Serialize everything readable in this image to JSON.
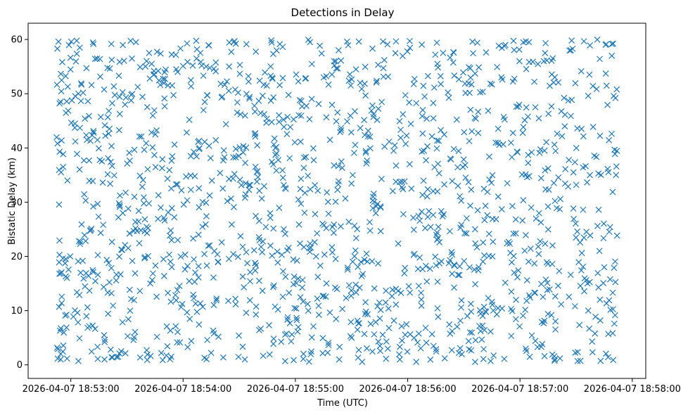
{
  "chart_data": {
    "type": "scatter",
    "title": "Detections in Delay",
    "xlabel": "Time (UTC)",
    "ylabel": "Bistatic Delay (km)",
    "marker": "x",
    "color": "#1f77b4",
    "x_unit": "minutes since 2026-04-07 18:52:00",
    "xlim": [
      0.62,
      6.12
    ],
    "ylim": [
      -2.5,
      63
    ],
    "x_ticks": [
      {
        "value": 1,
        "label": "2026-04-07 18:53:00"
      },
      {
        "value": 2,
        "label": "2026-04-07 18:54:00"
      },
      {
        "value": 3,
        "label": "2026-04-07 18:55:00"
      },
      {
        "value": 4,
        "label": "2026-04-07 18:56:00"
      },
      {
        "value": 5,
        "label": "2026-04-07 18:57:00"
      },
      {
        "value": 6,
        "label": "2026-04-07 18:58:00"
      }
    ],
    "y_ticks": [
      {
        "value": 0,
        "label": "0"
      },
      {
        "value": 10,
        "label": "10"
      },
      {
        "value": 20,
        "label": "20"
      },
      {
        "value": 30,
        "label": "30"
      },
      {
        "value": 40,
        "label": "40"
      },
      {
        "value": 50,
        "label": "50"
      },
      {
        "value": 60,
        "label": "60"
      }
    ],
    "grid": false,
    "series": [
      {
        "name": "Detections",
        "x_range": [
          0.87,
          5.87
        ],
        "y_range": [
          0.5,
          60
        ],
        "count": 1500,
        "seed": 20260407,
        "points": [
          [
            0.88,
            58.3
          ],
          [
            0.89,
            59.6
          ],
          [
            0.9,
            48.2
          ],
          [
            0.91,
            1.0
          ],
          [
            0.9,
            39.3
          ],
          [
            0.95,
            9.1
          ],
          [
            0.97,
            34.0
          ],
          [
            1.08,
            58.5
          ],
          [
            1.26,
            56.4
          ],
          [
            1.3,
            1.0
          ],
          [
            1.58,
            59.5
          ],
          [
            1.72,
            55.5
          ],
          [
            2.23,
            58.9
          ],
          [
            2.45,
            59.5
          ],
          [
            2.78,
            53.3
          ],
          [
            3.13,
            59.5
          ],
          [
            3.46,
            59.6
          ],
          [
            3.82,
            59.1
          ],
          [
            4.26,
            59.4
          ],
          [
            4.62,
            59.4
          ],
          [
            4.87,
            59.0
          ],
          [
            5.08,
            59.5
          ],
          [
            5.46,
            59.8
          ],
          [
            5.71,
            56.4
          ],
          [
            5.85,
            49.2
          ],
          [
            5.84,
            7.6
          ],
          [
            5.83,
            0.9
          ],
          [
            5.31,
            1.0
          ],
          [
            4.86,
            1.1
          ],
          [
            4.33,
            1.2
          ],
          [
            3.93,
            1.0
          ],
          [
            3.39,
            1.0
          ],
          [
            3.07,
            1.1
          ],
          [
            2.55,
            1.0
          ],
          [
            2.19,
            1.3
          ],
          [
            1.68,
            0.9
          ],
          [
            1.24,
            1.1
          ],
          [
            2.94,
            21.6
          ],
          [
            3.51,
            35.0
          ],
          [
            4.6,
            25.0
          ],
          [
            5.1,
            29.0
          ],
          [
            5.75,
            18.0
          ]
        ]
      }
    ]
  }
}
